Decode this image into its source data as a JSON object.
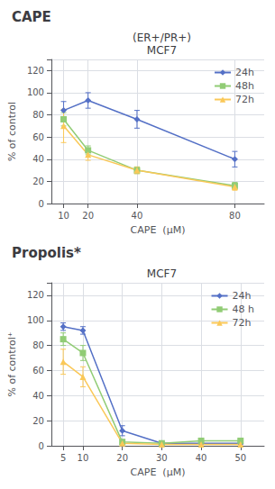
{
  "chart_data": [
    {
      "type": "line",
      "title": "CAPE",
      "subtitle": [
        "(ER+/PR+)",
        "MCF7"
      ],
      "xlabel": "CAPE  (μM)",
      "ylabel": "% of control",
      "x": [
        10,
        20,
        40,
        80
      ],
      "series": [
        {
          "name": "24h",
          "marker": "diamond",
          "values": [
            84,
            93,
            76,
            40
          ],
          "yerr": [
            8,
            7,
            8,
            7
          ]
        },
        {
          "name": "48h",
          "marker": "square",
          "values": [
            76,
            48,
            30,
            16
          ],
          "yerr": [
            6,
            4,
            3,
            3
          ]
        },
        {
          "name": "72h",
          "marker": "triangle",
          "values": [
            70,
            44,
            30,
            15
          ],
          "yerr": [
            15,
            5,
            3,
            3
          ]
        }
      ],
      "xlim": [
        5,
        92
      ],
      "ylim": [
        0,
        130
      ],
      "xticks": [
        10,
        20,
        40,
        80
      ],
      "yticks": [
        0,
        20,
        40,
        60,
        80,
        100,
        120
      ],
      "grid": true,
      "legend": "upper right"
    },
    {
      "type": "line",
      "title": "Propolis*",
      "subtitle": [
        "MCF7"
      ],
      "xlabel": "CAPE  (μM)",
      "ylabel": "% of control⁺",
      "x": [
        5,
        10,
        20,
        30,
        40,
        50
      ],
      "series": [
        {
          "name": "24h",
          "marker": "diamond",
          "values": [
            95,
            92,
            12,
            2,
            2,
            2
          ],
          "yerr": [
            3,
            3,
            4,
            1,
            1,
            1
          ]
        },
        {
          "name": "48 h",
          "marker": "square",
          "values": [
            85,
            74,
            3,
            2,
            4,
            4
          ],
          "yerr": [
            5,
            6,
            2,
            1,
            1,
            1
          ]
        },
        {
          "name": "72h",
          "marker": "triangle",
          "values": [
            67,
            55,
            2,
            1,
            1,
            1
          ],
          "yerr": [
            10,
            8,
            1,
            1,
            1,
            1
          ]
        }
      ],
      "xlim": [
        2,
        56
      ],
      "ylim": [
        0,
        130
      ],
      "xticks": [
        5,
        10,
        20,
        30,
        40,
        50
      ],
      "yticks": [
        0,
        20,
        40,
        60,
        80,
        100,
        120
      ],
      "grid": true,
      "legend": "upper right"
    }
  ]
}
